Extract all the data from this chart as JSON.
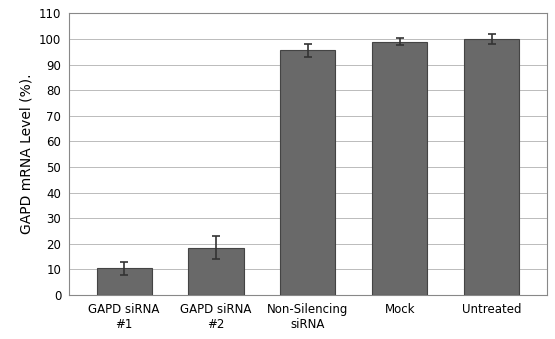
{
  "categories": [
    "GAPD siRNA\n#1",
    "GAPD siRNA\n#2",
    "Non-Silencing\nsiRNA",
    "Mock",
    "Untreated"
  ],
  "values": [
    10.5,
    18.5,
    95.5,
    99.0,
    100.0
  ],
  "errors": [
    2.5,
    4.5,
    2.5,
    1.5,
    2.0
  ],
  "bar_color": "#696969",
  "bar_edgecolor": "#444444",
  "ylabel": "GAPD mRNA Level (%).",
  "ylim": [
    0,
    110
  ],
  "yticks": [
    0,
    10,
    20,
    30,
    40,
    50,
    60,
    70,
    80,
    90,
    100,
    110
  ],
  "background_color": "#ffffff",
  "plot_bg_color": "#ffffff",
  "grid_color": "#bbbbbb",
  "tick_fontsize": 8.5,
  "label_fontsize": 10,
  "bar_width": 0.6,
  "error_capsize": 3,
  "error_color": "#333333",
  "error_linewidth": 1.2,
  "spine_color": "#888888",
  "spine_linewidth": 0.8
}
